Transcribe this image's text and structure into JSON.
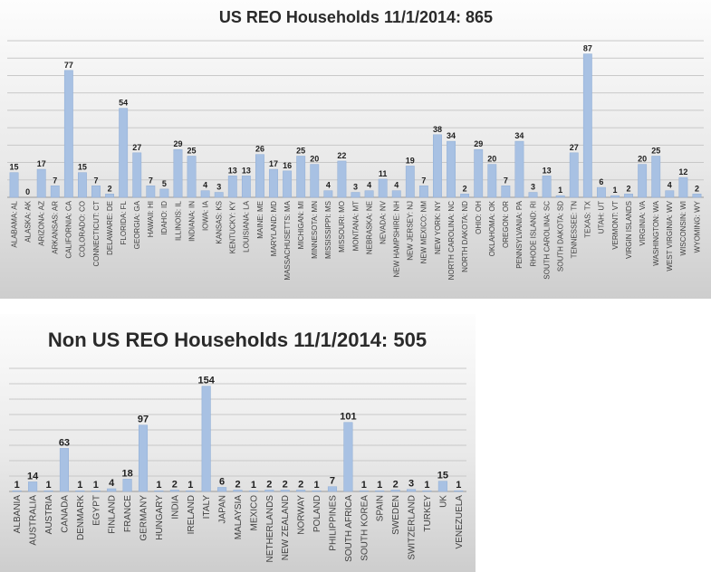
{
  "chart_data": [
    {
      "type": "bar",
      "title": "US REO Households 11/1/2014:  865",
      "xlabel": "",
      "ylabel": "",
      "ylim": [
        0,
        95
      ],
      "grid": true,
      "legend": "none",
      "bar_color": "#a8c1e3",
      "categories": [
        "ALABAMA: AL",
        "ALASKA: AK",
        "ARIZONA: AZ",
        "ARKANSAS: AR",
        "CALIFORNIA: CA",
        "COLORADO: CO",
        "CONNECTICUT: CT",
        "DELAWARE: DE",
        "FLORIDA: FL",
        "GEORGIA: GA",
        "HAWAII: HI",
        "IDAHO: ID",
        "ILLINOIS: IL",
        "INDIANA: IN",
        "IOWA: IA",
        "KANSAS: KS",
        "KENTUCKY: KY",
        "LOUISIANA: LA",
        "MAINE: ME",
        "MARYLAND: MD",
        "MASSACHUSETTS: MA",
        "MICHIGAN: MI",
        "MINNESOTA: MN",
        "MISSISSIPPI: MS",
        "MISSOURI: MO",
        "MONTANA: MT",
        "NEBRASKA: NE",
        "NEVADA: NV",
        "NEW HAMPSHIRE: NH",
        "NEW JERSEY: NJ",
        "NEW MEXICO: NM",
        "NEW YORK: NY",
        "NORTH CAROLINA: NC",
        "NORTH DAKOTA: ND",
        "OHIO: OH",
        "OKLAHOMA: OK",
        "OREGON: OR",
        "PENNSYLVANIA: PA",
        "RHODE ISLAND: RI",
        "SOUTH CAROLINA: SC",
        "SOUTH DAKOTA: SD",
        "TENNESSEE: TN",
        "TEXAS: TX",
        "UTAH: UT",
        "VERMONT: VT",
        "VIRGIN ISLANDS",
        "VIRGINIA: VA",
        "WASHINGTON: WA",
        "WEST VIRGINIA: WV",
        "WISCONSIN: WI",
        "WYOMING: WY"
      ],
      "values": [
        15,
        0,
        17,
        7,
        77,
        15,
        7,
        2,
        54,
        27,
        7,
        5,
        29,
        25,
        4,
        3,
        13,
        13,
        26,
        17,
        16,
        25,
        20,
        4,
        22,
        3,
        4,
        11,
        4,
        19,
        7,
        38,
        34,
        2,
        29,
        20,
        7,
        34,
        3,
        13,
        1,
        27,
        87,
        6,
        1,
        2,
        20,
        25,
        4,
        12,
        2
      ]
    },
    {
      "type": "bar",
      "title": "Non US REO Households 11/1/2014:  505",
      "xlabel": "",
      "ylabel": "",
      "ylim": [
        0,
        180
      ],
      "grid": true,
      "legend": "none",
      "bar_color": "#a8c1e3",
      "categories": [
        "ALBANIA",
        "AUSTRALIA",
        "AUSTRIA",
        "CANADA",
        "DENMARK",
        "EGYPT",
        "FINLAND",
        "FRANCE",
        "GERMANY",
        "HUNGARY",
        "INDIA",
        "IRELAND",
        "ITALY",
        "JAPAN",
        "MALAYSIA",
        "MEXICO",
        "NETHERLANDS",
        "NEW ZEALAND",
        "NORWAY",
        "POLAND",
        "PHILIPPINES",
        "SOUTH AFRICA",
        "SOUTH KOREA",
        "SPAIN",
        "SWEDEN",
        "SWITZERLAND",
        "TURKEY",
        "UK",
        "VENEZUELA"
      ],
      "values": [
        1,
        14,
        1,
        63,
        1,
        1,
        4,
        18,
        97,
        1,
        2,
        1,
        154,
        6,
        2,
        1,
        2,
        2,
        2,
        1,
        7,
        101,
        1,
        1,
        2,
        3,
        1,
        15,
        1
      ]
    }
  ]
}
